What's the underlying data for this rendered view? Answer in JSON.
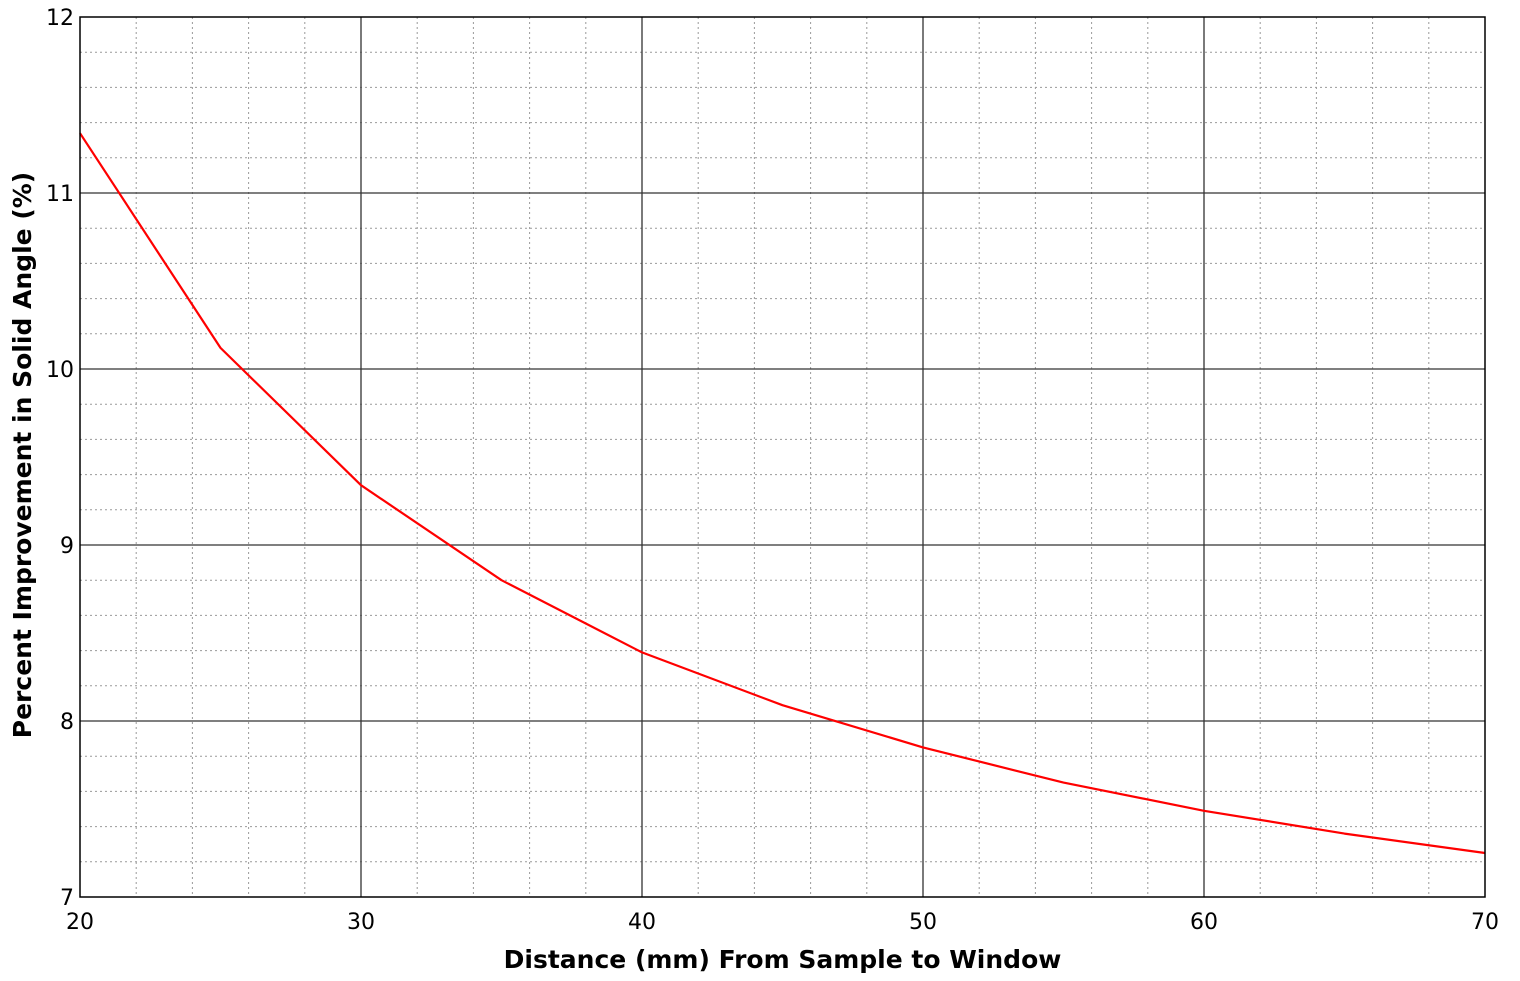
{
  "chart_data": {
    "type": "line",
    "title": "",
    "xlabel": "Distance (mm) From Sample to Window",
    "ylabel": "Percent Improvement in Solid Angle (%)",
    "xlim": [
      20,
      70
    ],
    "ylim": [
      7,
      12
    ],
    "x_ticks": [
      20,
      30,
      40,
      50,
      60,
      70
    ],
    "x_tick_labels": [
      "20",
      "30",
      "40",
      "50",
      "60",
      "70"
    ],
    "y_ticks": [
      7,
      8,
      9,
      10,
      11,
      12
    ],
    "y_tick_labels": [
      "7",
      "8",
      "9",
      "10",
      "11",
      "12"
    ],
    "x_minor_step": 2,
    "y_minor_step": 0.2,
    "grid": true,
    "legend": "none",
    "series": [
      {
        "color": "#ff0000",
        "x": [
          20,
          25,
          30,
          35,
          40,
          45,
          50,
          55,
          60,
          65,
          70
        ],
        "y": [
          11.34,
          10.12,
          9.34,
          8.8,
          8.39,
          8.09,
          7.85,
          7.65,
          7.49,
          7.36,
          7.25
        ]
      }
    ]
  }
}
